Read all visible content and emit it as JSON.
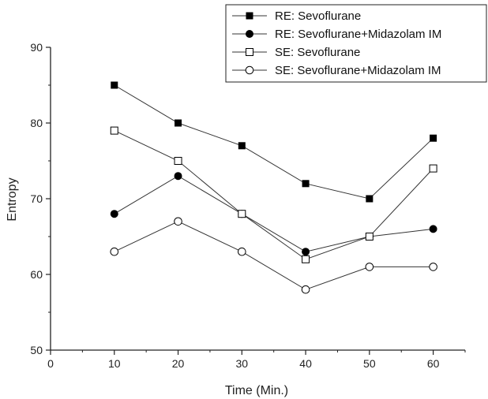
{
  "chart_data": {
    "type": "line",
    "xlabel": "Time (Min.)",
    "ylabel": "Entropy",
    "xlim": [
      0,
      65
    ],
    "ylim": [
      50,
      90
    ],
    "xticks": [
      0,
      10,
      20,
      30,
      40,
      50,
      60
    ],
    "yticks": [
      50,
      60,
      70,
      80,
      90
    ],
    "x": [
      10,
      20,
      30,
      40,
      50,
      60
    ],
    "legend_position": "top-right",
    "grid": false,
    "series": [
      {
        "name": "RE: Sevoflurane",
        "marker": "square-filled",
        "values": [
          85,
          80,
          77,
          72,
          70,
          78
        ]
      },
      {
        "name": "RE: Sevoflurane+Midazolam IM",
        "marker": "circle-filled",
        "values": [
          68,
          73,
          68,
          63,
          65,
          66
        ]
      },
      {
        "name": "SE: Sevoflurane",
        "marker": "square-open",
        "values": [
          79,
          75,
          68,
          62,
          65,
          74
        ]
      },
      {
        "name": "SE: Sevoflurane+Midazolam IM",
        "marker": "circle-open",
        "values": [
          63,
          67,
          63,
          58,
          61,
          61
        ]
      }
    ]
  }
}
